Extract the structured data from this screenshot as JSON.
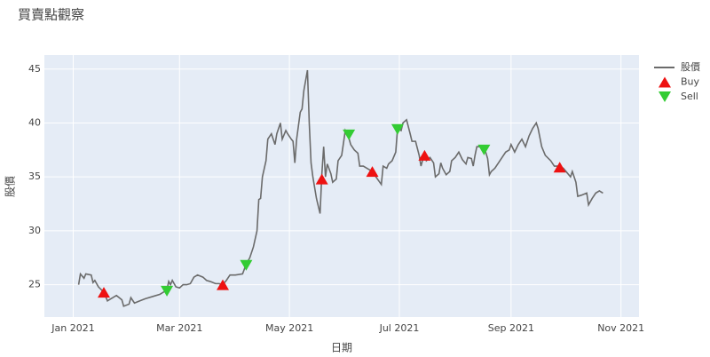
{
  "chart_data": {
    "type": "line",
    "title": "買賣點觀察",
    "x_label": "日期",
    "y_label": "股價",
    "xlim": [
      "2020-12-16",
      "2021-11-11"
    ],
    "xticks": [
      {
        "value": "2021-01-01",
        "label": "Jan 2021"
      },
      {
        "value": "2021-03-01",
        "label": "Mar 2021"
      },
      {
        "value": "2021-05-01",
        "label": "May 2021"
      },
      {
        "value": "2021-07-01",
        "label": "Jul 2021"
      },
      {
        "value": "2021-09-01",
        "label": "Sep 2021"
      },
      {
        "value": "2021-11-01",
        "label": "Nov 2021"
      }
    ],
    "ylim": [
      22,
      46.3
    ],
    "yticks": [
      25,
      30,
      35,
      40,
      45
    ],
    "grid": true,
    "legend": "right",
    "series": [
      {
        "name": "股價",
        "color": "#6b6b6b",
        "mode": "line",
        "x": [
          "2021-01-04",
          "2021-01-05",
          "2021-01-07",
          "2021-01-08",
          "2021-01-11",
          "2021-01-12",
          "2021-01-13",
          "2021-01-15",
          "2021-01-18",
          "2021-01-20",
          "2021-01-22",
          "2021-01-25",
          "2021-01-28",
          "2021-01-29",
          "2021-02-01",
          "2021-02-02",
          "2021-02-04",
          "2021-02-07",
          "2021-02-10",
          "2021-02-14",
          "2021-02-18",
          "2021-02-22",
          "2021-02-23",
          "2021-02-24",
          "2021-02-25",
          "2021-02-27",
          "2021-03-01",
          "2021-03-03",
          "2021-03-05",
          "2021-03-07",
          "2021-03-09",
          "2021-03-11",
          "2021-03-14",
          "2021-03-16",
          "2021-03-18",
          "2021-03-21",
          "2021-03-23",
          "2021-03-25",
          "2021-03-27",
          "2021-03-29",
          "2021-04-01",
          "2021-04-05",
          "2021-04-07",
          "2021-04-09",
          "2021-04-11",
          "2021-04-13",
          "2021-04-14",
          "2021-04-15",
          "2021-04-16",
          "2021-04-18",
          "2021-04-19",
          "2021-04-21",
          "2021-04-22",
          "2021-04-23",
          "2021-04-24",
          "2021-04-26",
          "2021-04-27",
          "2021-04-29",
          "2021-04-30",
          "2021-05-02",
          "2021-05-03",
          "2021-05-04",
          "2021-05-05",
          "2021-05-07",
          "2021-05-08",
          "2021-05-09",
          "2021-05-11",
          "2021-05-12",
          "2021-05-13",
          "2021-05-14",
          "2021-05-16",
          "2021-05-18",
          "2021-05-19",
          "2021-05-20",
          "2021-05-21",
          "2021-05-22",
          "2021-05-24",
          "2021-05-25",
          "2021-05-27",
          "2021-05-28",
          "2021-05-30",
          "2021-06-01",
          "2021-06-03",
          "2021-06-04",
          "2021-06-06",
          "2021-06-08",
          "2021-06-09",
          "2021-06-11",
          "2021-06-14",
          "2021-06-16",
          "2021-06-18",
          "2021-06-21",
          "2021-06-22",
          "2021-06-24",
          "2021-06-25",
          "2021-06-27",
          "2021-06-29",
          "2021-06-30",
          "2021-07-02",
          "2021-07-03",
          "2021-07-05",
          "2021-07-07",
          "2021-07-08",
          "2021-07-10",
          "2021-07-12",
          "2021-07-13",
          "2021-07-15",
          "2021-07-16",
          "2021-07-18",
          "2021-07-20",
          "2021-07-21",
          "2021-07-23",
          "2021-07-24",
          "2021-07-25",
          "2021-07-27",
          "2021-07-29",
          "2021-07-30",
          "2021-08-01",
          "2021-08-03",
          "2021-08-05",
          "2021-08-07",
          "2021-08-08",
          "2021-08-10",
          "2021-08-11",
          "2021-08-12",
          "2021-08-13",
          "2021-08-17",
          "2021-08-19",
          "2021-08-20",
          "2021-08-21",
          "2021-08-23",
          "2021-08-25",
          "2021-08-27",
          "2021-08-29",
          "2021-08-31",
          "2021-09-01",
          "2021-09-03",
          "2021-09-05",
          "2021-09-07",
          "2021-09-09",
          "2021-09-11",
          "2021-09-13",
          "2021-09-15",
          "2021-09-16",
          "2021-09-18",
          "2021-09-20",
          "2021-09-23",
          "2021-09-25",
          "2021-09-28",
          "2021-09-30",
          "2021-10-02",
          "2021-10-04",
          "2021-10-05",
          "2021-10-07",
          "2021-10-08",
          "2021-10-10",
          "2021-10-13",
          "2021-10-14",
          "2021-10-16",
          "2021-10-18",
          "2021-10-20",
          "2021-10-22"
        ],
        "values": [
          25.0,
          26.0,
          25.6,
          26.0,
          25.9,
          25.2,
          25.4,
          24.8,
          24.3,
          23.5,
          23.7,
          24.0,
          23.6,
          23.0,
          23.2,
          23.8,
          23.3,
          23.5,
          23.7,
          23.9,
          24.1,
          24.5,
          25.3,
          25.0,
          25.4,
          24.8,
          24.7,
          25.0,
          25.0,
          25.1,
          25.7,
          25.9,
          25.7,
          25.4,
          25.3,
          25.1,
          25.1,
          25.0,
          25.4,
          25.9,
          25.9,
          26.0,
          26.9,
          27.5,
          28.5,
          30.0,
          32.9,
          33.0,
          35.0,
          36.5,
          38.5,
          39.0,
          38.5,
          38.0,
          39.0,
          40.0,
          38.5,
          39.3,
          39.0,
          38.5,
          38.3,
          36.3,
          38.5,
          41.0,
          41.3,
          43.0,
          44.9,
          40.0,
          36.3,
          35.0,
          33.0,
          31.6,
          35.3,
          37.8,
          35.0,
          36.2,
          35.3,
          34.5,
          34.8,
          36.5,
          37.0,
          39.3,
          38.6,
          38.0,
          37.5,
          37.2,
          36.0,
          36.0,
          35.7,
          35.5,
          35.0,
          34.3,
          36.0,
          35.8,
          36.2,
          36.5,
          37.3,
          39.5,
          39.3,
          40.0,
          40.3,
          39.0,
          38.3,
          38.3,
          37.0,
          36.0,
          37.2,
          36.5,
          36.8,
          36.3,
          35.0,
          35.3,
          36.3,
          35.8,
          35.2,
          35.5,
          36.5,
          36.8,
          37.3,
          36.6,
          36.2,
          36.8,
          36.7,
          36.0,
          37.0,
          37.8,
          37.8,
          36.7,
          35.2,
          35.5,
          35.8,
          36.3,
          36.8,
          37.3,
          37.5,
          38.0,
          37.3,
          38.0,
          38.5,
          37.8,
          38.8,
          39.5,
          40.0,
          39.5,
          37.8,
          37.0,
          36.5,
          36.0,
          36.0,
          35.8,
          35.4,
          35.0,
          35.5,
          34.5,
          33.2,
          33.3,
          33.5,
          32.4,
          33.0,
          33.5,
          33.7,
          33.5
        ]
      },
      {
        "name": "Buy",
        "color": "#ee1111",
        "mode": "triangle-up",
        "x": [
          "2021-01-18",
          "2021-03-25",
          "2021-05-19",
          "2021-06-16",
          "2021-07-15",
          "2021-09-28"
        ],
        "values": [
          24.3,
          25.0,
          34.8,
          35.5,
          37.0,
          35.9
        ]
      },
      {
        "name": "Sell",
        "color": "#33cc33",
        "mode": "triangle-down",
        "x": [
          "2021-02-22",
          "2021-04-07",
          "2021-06-03",
          "2021-06-30",
          "2021-08-17"
        ],
        "values": [
          24.4,
          26.8,
          38.9,
          39.4,
          37.5
        ]
      }
    ]
  }
}
